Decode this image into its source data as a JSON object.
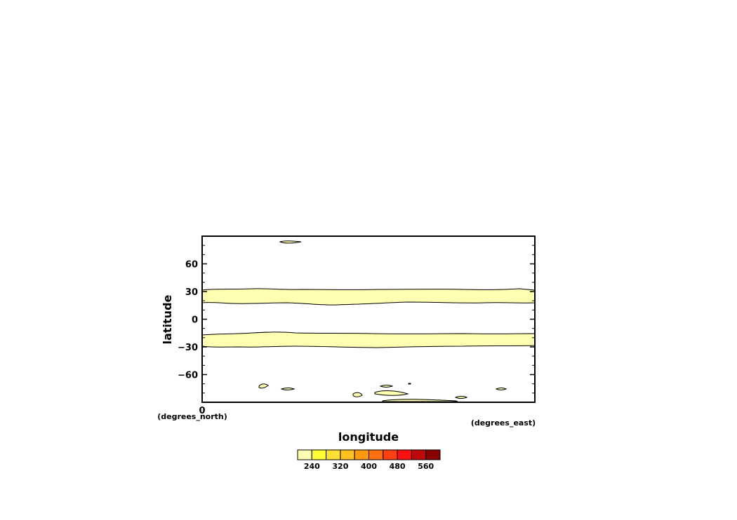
{
  "chart_data": {
    "type": "contour",
    "x_axis": {
      "label": "longitude",
      "units": "(degrees_east)",
      "ticks": [
        0
      ]
    },
    "y_axis": {
      "label": "latitude",
      "units": "(degrees_north)",
      "range": [
        -90,
        90
      ],
      "ticks": [
        60,
        30,
        0,
        -30,
        -60
      ]
    },
    "colorbar": {
      "labels": [
        240,
        320,
        400,
        480,
        560
      ],
      "bins": [
        200,
        240,
        280,
        320,
        360,
        400,
        440,
        480,
        520,
        560
      ],
      "colors": [
        "#ffffb2",
        "#ffff33",
        "#ffe033",
        "#ffc020",
        "#ff9a10",
        "#ff7010",
        "#ff4010",
        "#ff1010",
        "#c00808",
        "#8b0000"
      ]
    },
    "fill_color": "#ffffb2",
    "regions": [
      {
        "name": "northern subtropical band",
        "lat_range": [
          17,
          31
        ],
        "lon_range": [
          0,
          360
        ],
        "level": "200-240"
      },
      {
        "name": "southern subtropical band",
        "lat_range": [
          -30,
          -15
        ],
        "lon_range": [
          0,
          360
        ],
        "level": "200-240"
      }
    ]
  }
}
